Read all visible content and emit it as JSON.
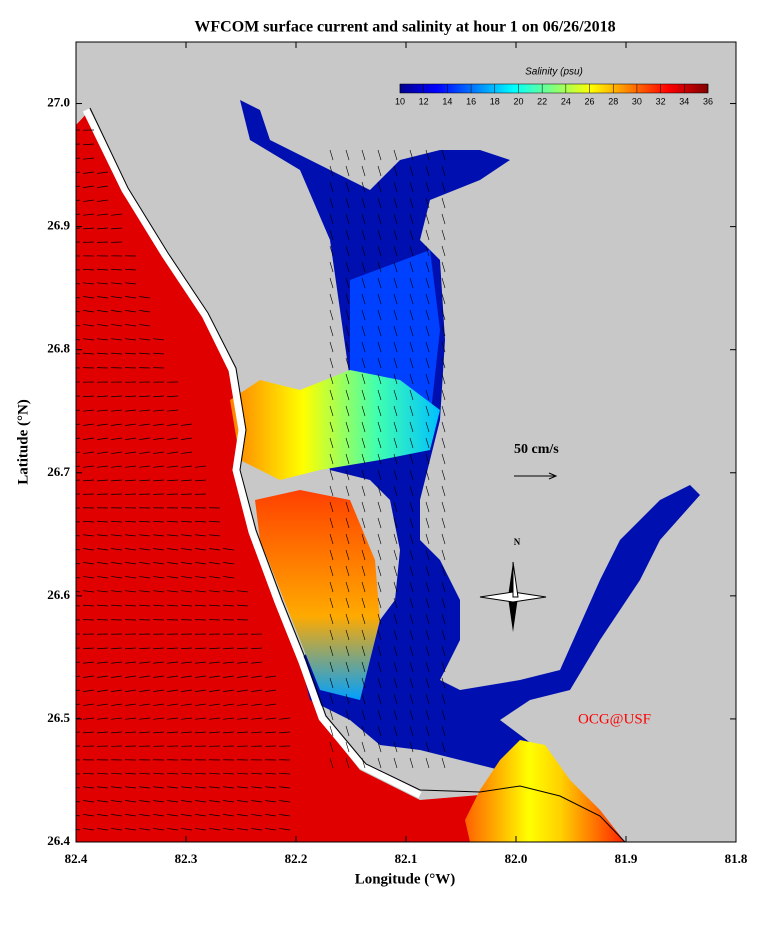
{
  "chart_data": {
    "type": "map",
    "title": "WFCOM surface current and salinity at hour 1 on 06/26/2018",
    "x_label": "Longitude (°W)",
    "y_label": "Latitude (°N)",
    "xlim": [
      82.4,
      81.8
    ],
    "xticks": [
      82.4,
      82.3,
      82.2,
      82.1,
      {
        "value": 82,
        "label": "82.0"
      },
      81.9,
      81.8
    ],
    "ylim": [
      26.4,
      27.05
    ],
    "yticks": [
      26.4,
      26.5,
      26.6,
      26.7,
      26.8,
      26.9,
      {
        "value": 27,
        "label": "27.0"
      }
    ],
    "colorbar": {
      "label": "Salinity (psu)",
      "lim": [
        10,
        36
      ],
      "ticks": [
        10,
        12,
        14,
        16,
        18,
        20,
        22,
        24,
        26,
        28,
        30,
        32,
        34,
        36
      ]
    },
    "scale_label": "50 cm/s",
    "compass_label": "N",
    "credit": "OCG@USF"
  }
}
